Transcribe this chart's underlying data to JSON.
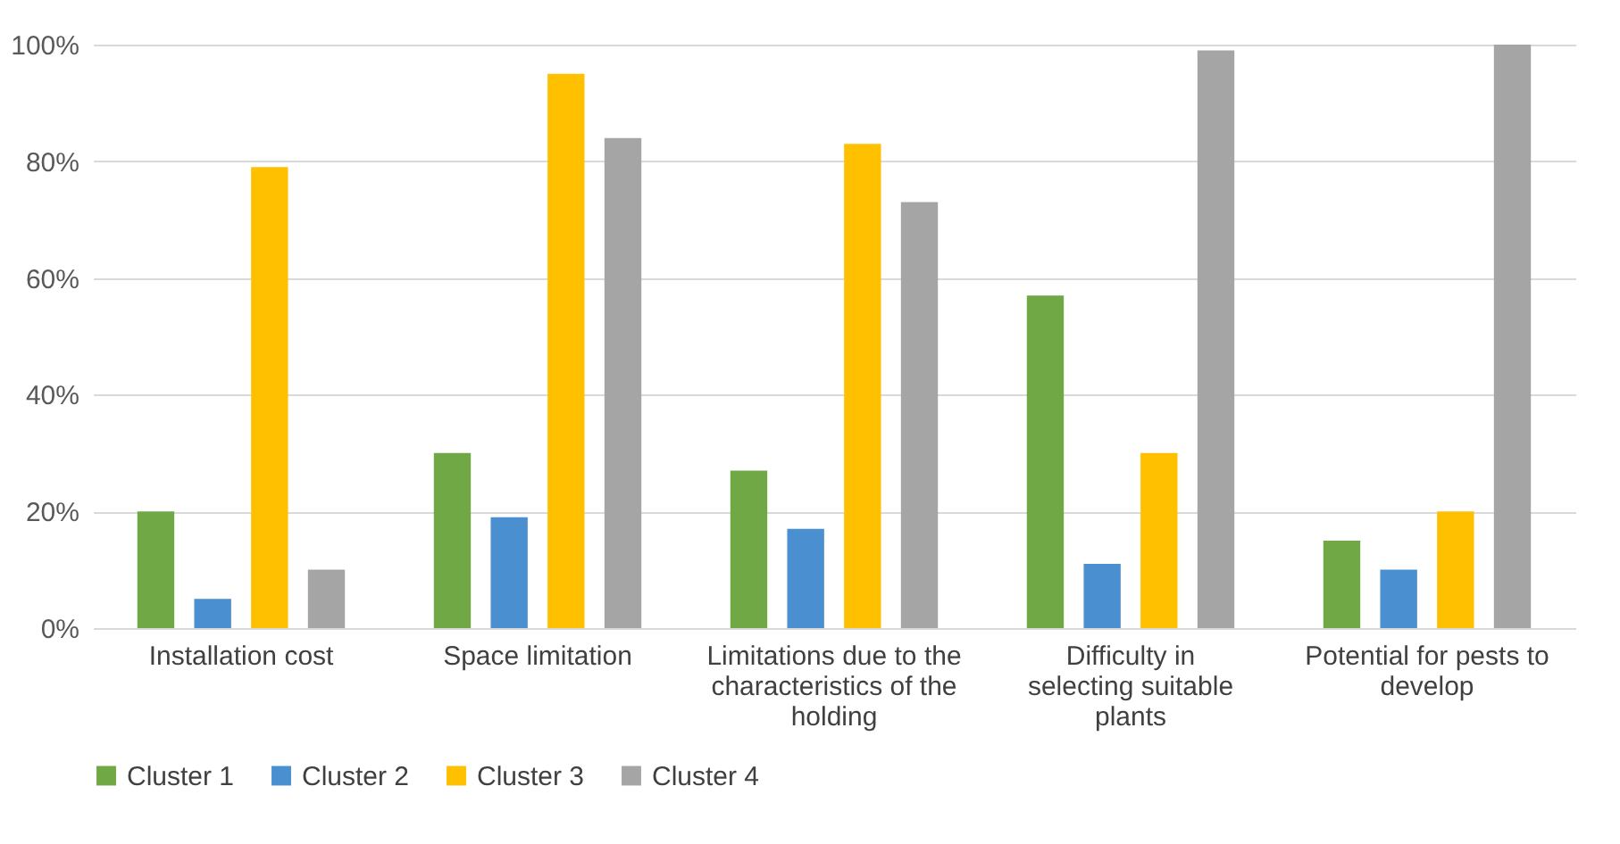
{
  "chart_data": {
    "type": "bar",
    "categories": [
      "Installation cost",
      "Space limitation",
      "Limitations due to the characteristics of the holding",
      "Difficulty in selecting suitable plants",
      "Potential for pests to develop"
    ],
    "series": [
      {
        "name": "Cluster 1",
        "color": "#70a845",
        "values": [
          20,
          30,
          27,
          57,
          15
        ]
      },
      {
        "name": "Cluster 2",
        "color": "#4a90d0",
        "values": [
          5,
          19,
          17,
          11,
          10
        ]
      },
      {
        "name": "Cluster 3",
        "color": "#ffc000",
        "values": [
          79,
          95,
          83,
          30,
          20
        ]
      },
      {
        "name": "Cluster 4",
        "color": "#a5a5a5",
        "values": [
          10,
          84,
          73,
          99,
          100
        ]
      }
    ],
    "ylim": [
      0,
      100
    ],
    "yticks": [
      {
        "value": 0,
        "label": "0%"
      },
      {
        "value": 20,
        "label": "20%"
      },
      {
        "value": 40,
        "label": "40%"
      },
      {
        "value": 60,
        "label": "60%"
      },
      {
        "value": 80,
        "label": "80%"
      },
      {
        "value": 100,
        "label": "100%"
      }
    ],
    "grid": "y",
    "legend": "bottom"
  }
}
